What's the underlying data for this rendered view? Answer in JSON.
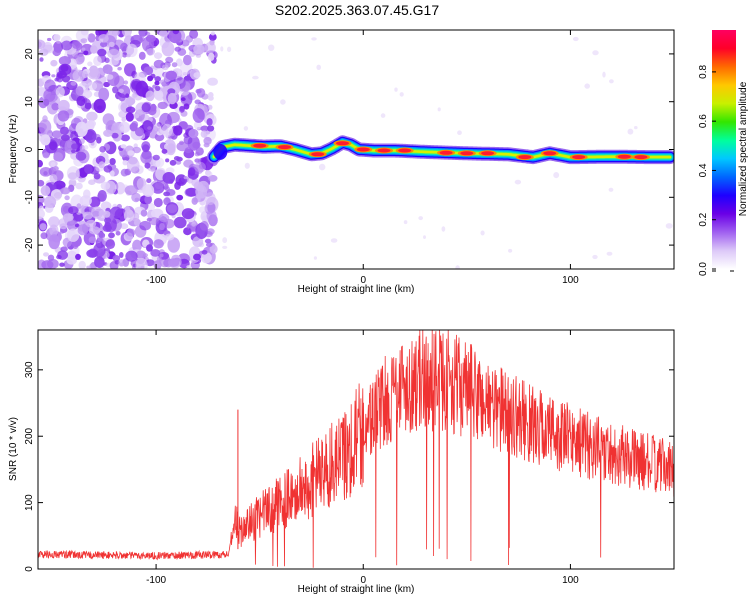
{
  "title": "S202.2025.363.07.45.G17",
  "chart_data": [
    {
      "type": "heatmap",
      "name": "spectrogram",
      "xlabel": "Height of straight line (km)",
      "ylabel": "Frequency (Hz)",
      "xlim": [
        -157,
        150
      ],
      "ylim": [
        -25,
        25
      ],
      "xticks": [
        -100,
        0,
        100
      ],
      "yticks": [
        -20,
        -10,
        0,
        10,
        20
      ],
      "colorbar": {
        "label": "Normalized spectral amplitude",
        "range": [
          0,
          0.97
        ],
        "ticks": [
          0.0,
          0.2,
          0.4,
          0.6,
          0.8
        ],
        "tick_labels": [
          "0.0",
          "0.2",
          "0.4",
          "0.6",
          "0.8"
        ],
        "colormap": [
          "#ffffff",
          "#dcc8f8",
          "#a060f0",
          "#6a00e6",
          "#1e00ff",
          "#0066ff",
          "#00c8ff",
          "#00ff9c",
          "#32e600",
          "#c8f000",
          "#ffc800",
          "#ff6a00",
          "#ff0028",
          "#ff0060"
        ]
      },
      "noise_region_x": [
        -157,
        -72
      ],
      "signal_track": {
        "x": [
          -72,
          -68,
          -62,
          -55,
          -48,
          -40,
          -33,
          -25,
          -20,
          -15,
          -10,
          -6,
          -2,
          5,
          15,
          30,
          50,
          70,
          82,
          90,
          100,
          120,
          140,
          148
        ],
        "freq": [
          -1.5,
          0.5,
          1.0,
          0.8,
          0.6,
          0.7,
          0.0,
          -1.0,
          -0.8,
          0.2,
          1.5,
          1.0,
          0.0,
          -0.2,
          -0.2,
          -0.5,
          -0.8,
          -1.0,
          -1.6,
          -0.8,
          -1.6,
          -1.5,
          -1.6,
          -1.6
        ]
      },
      "hotspots": [
        {
          "x": -50,
          "freq": 0.8
        },
        {
          "x": -38,
          "freq": 0.5
        },
        {
          "x": -22,
          "freq": -1.0
        },
        {
          "x": -10,
          "freq": 1.3
        },
        {
          "x": 0,
          "freq": 0.0
        },
        {
          "x": 10,
          "freq": -0.2
        },
        {
          "x": 20,
          "freq": -0.2
        },
        {
          "x": 40,
          "freq": -0.7
        },
        {
          "x": 50,
          "freq": -0.8
        },
        {
          "x": 60,
          "freq": -0.8
        },
        {
          "x": 78,
          "freq": -1.6
        },
        {
          "x": 90,
          "freq": -0.8
        },
        {
          "x": 104,
          "freq": -1.6
        },
        {
          "x": 126,
          "freq": -1.5
        },
        {
          "x": 134,
          "freq": -1.6
        }
      ]
    },
    {
      "type": "line",
      "name": "snr",
      "xlabel": "Height of straight line (km)",
      "ylabel": "SNR (10 * v/v)",
      "xlim": [
        -157,
        150
      ],
      "ylim": [
        0,
        360
      ],
      "xticks": [
        -100,
        0,
        100
      ],
      "yticks": [
        0,
        100,
        200,
        300
      ],
      "color": "#f03232",
      "envelope": {
        "x": [
          -157,
          -100,
          -65,
          -62,
          -60,
          -50,
          -30,
          -10,
          10,
          20,
          30,
          40,
          50,
          60,
          80,
          100,
          120,
          150
        ],
        "y": [
          22,
          20,
          22,
          80,
          55,
          80,
          120,
          170,
          250,
          280,
          285,
          285,
          270,
          250,
          220,
          195,
          175,
          150
        ]
      },
      "spike": {
        "x": -60.5,
        "y": 240
      }
    }
  ]
}
